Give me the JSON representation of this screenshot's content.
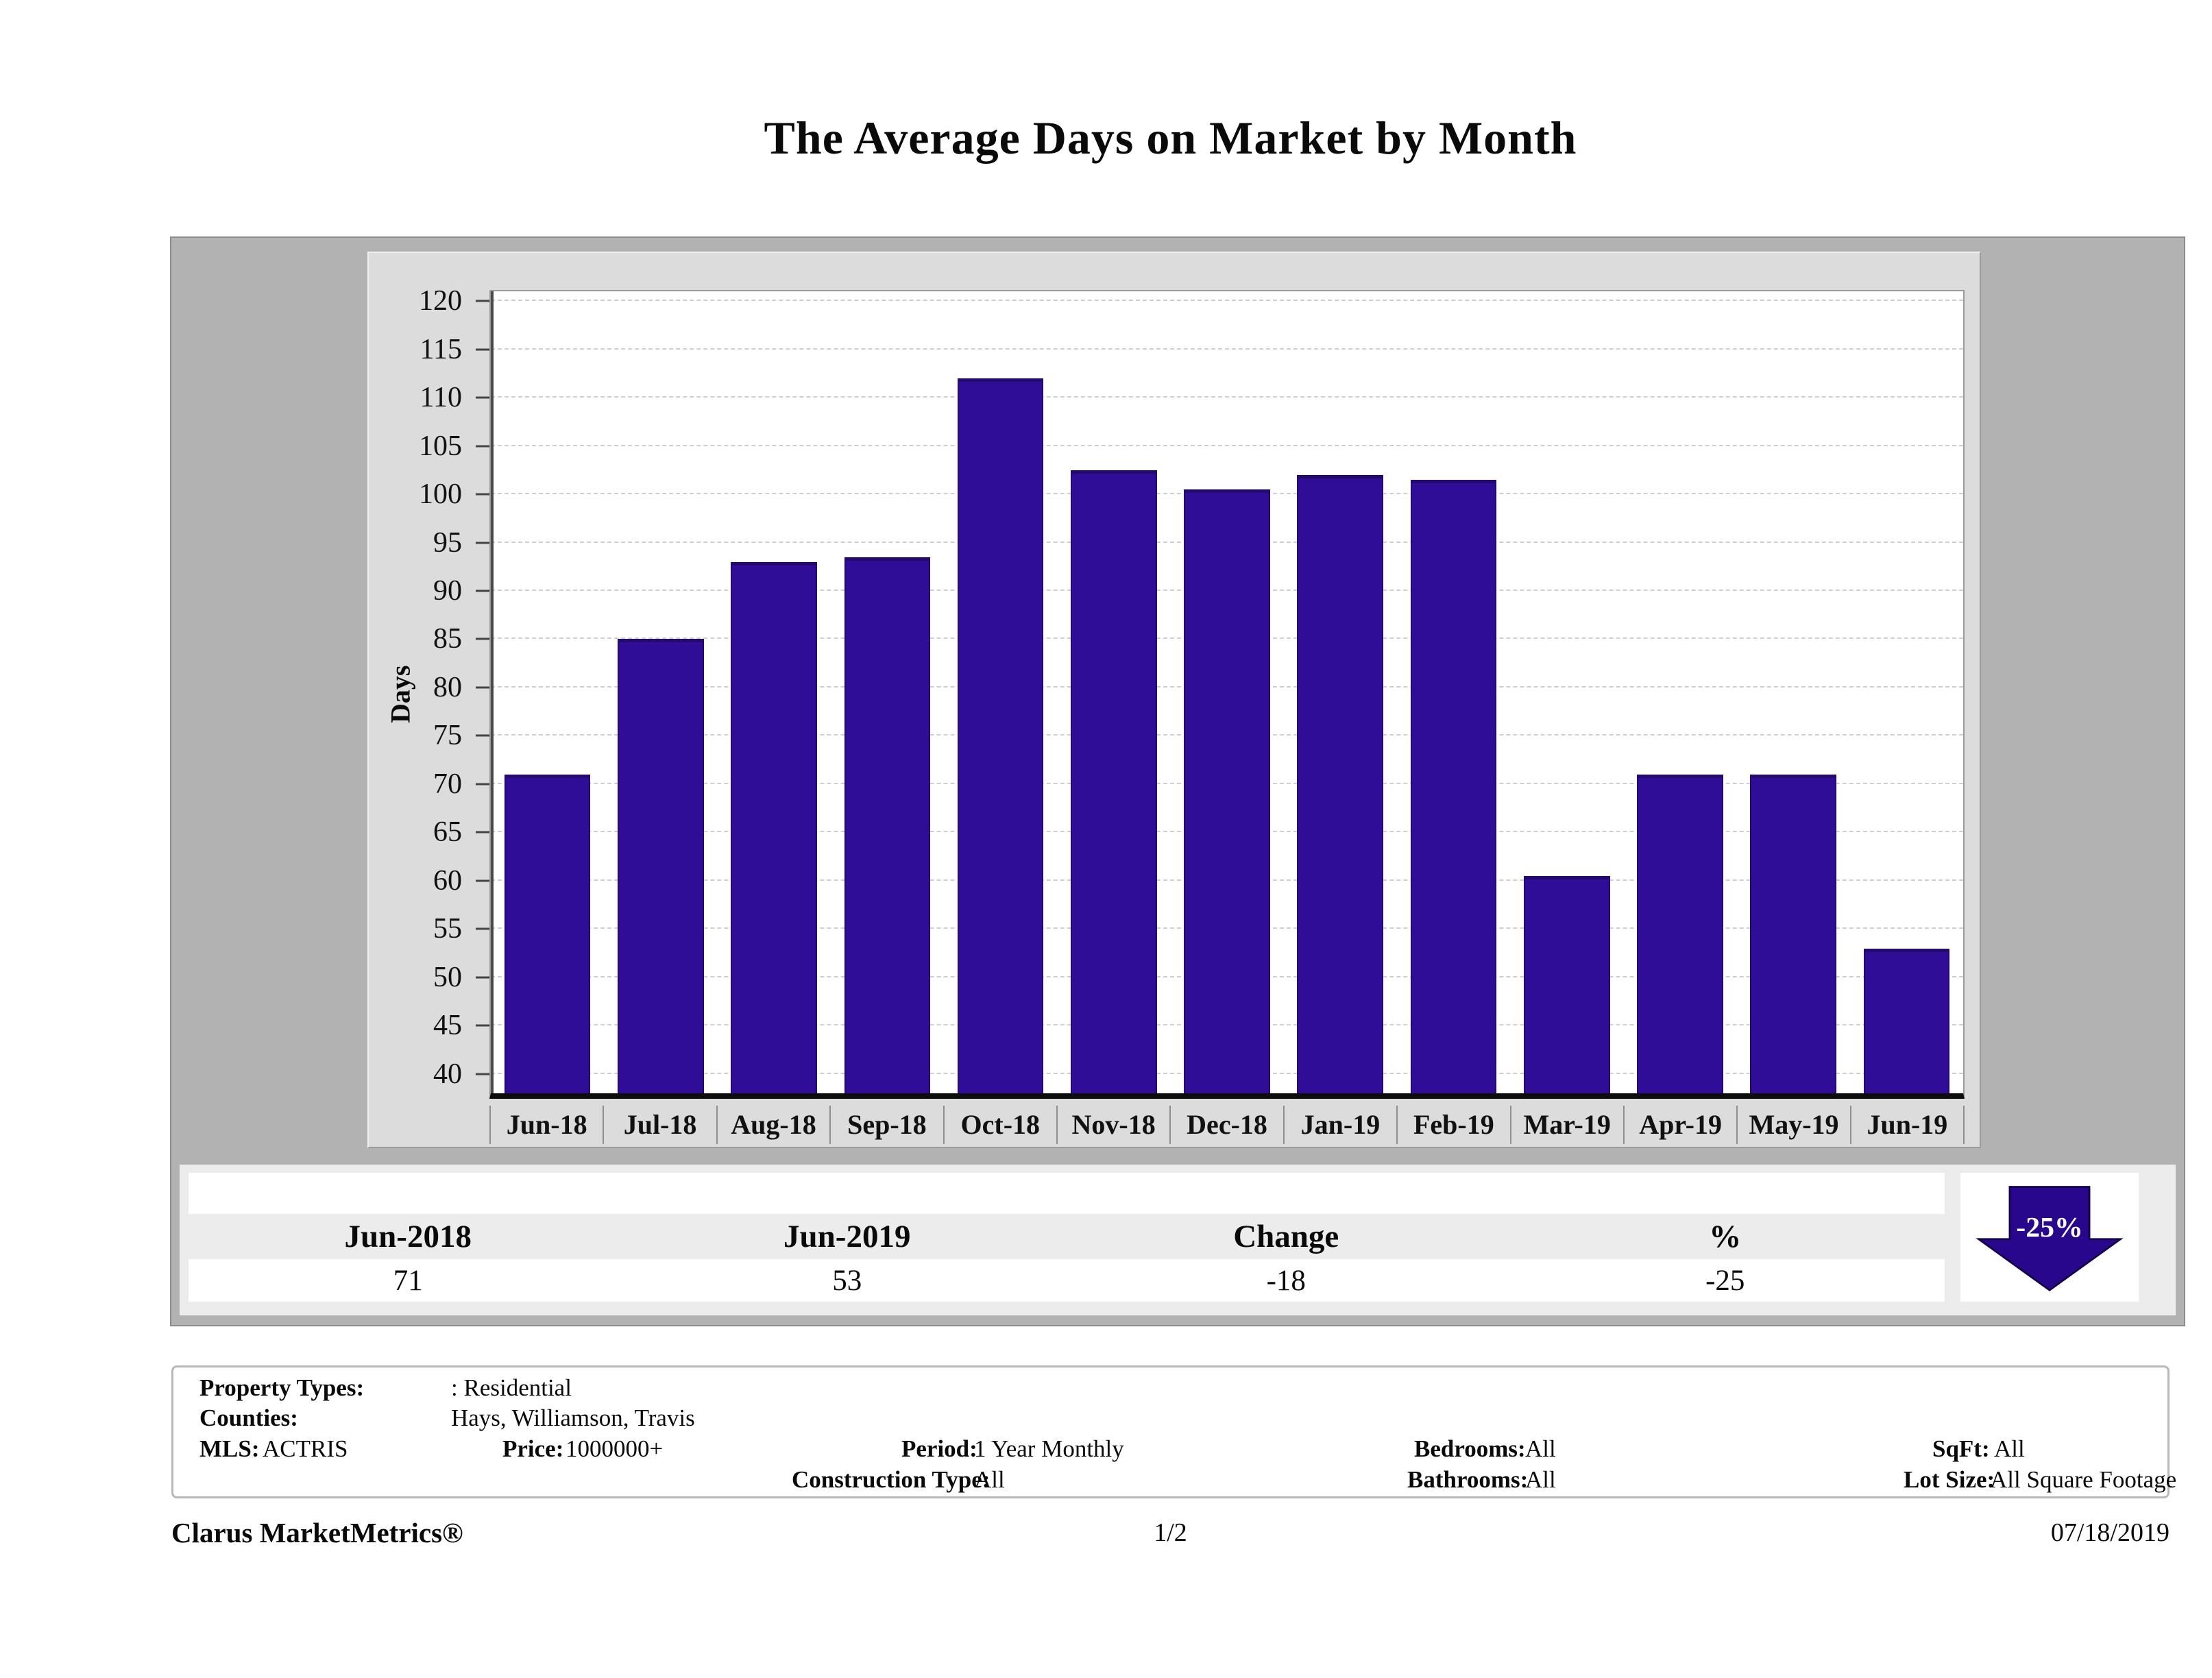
{
  "title": "The Average Days on Market by Month",
  "chart_data": {
    "type": "bar",
    "title": "The Average Days on Market by Month",
    "xlabel": "",
    "ylabel": "Days",
    "categories": [
      "Jun-18",
      "Jul-18",
      "Aug-18",
      "Sep-18",
      "Oct-18",
      "Nov-18",
      "Dec-18",
      "Jan-19",
      "Feb-19",
      "Mar-19",
      "Apr-19",
      "May-19",
      "Jun-19"
    ],
    "values": [
      71,
      85,
      93,
      93.5,
      112,
      102.5,
      100.5,
      102,
      101.5,
      60.5,
      71,
      71,
      53
    ],
    "y_ticks": [
      40,
      45,
      50,
      55,
      60,
      65,
      70,
      75,
      80,
      85,
      90,
      95,
      100,
      105,
      110,
      115,
      120
    ],
    "ylim": [
      38,
      121
    ],
    "grid": "horizontal-dashed",
    "legend": "none",
    "bar_color": "#2f0d96"
  },
  "summary_table": {
    "headers": [
      "Jun-2018",
      "Jun-2019",
      "Change",
      "%"
    ],
    "values": [
      "71",
      "53",
      "-18",
      "-25"
    ]
  },
  "trend_indicator": {
    "label": "-25%",
    "direction": "down",
    "color": "#29078d"
  },
  "filters": {
    "property_types_label": "Property Types:",
    "property_types": ": Residential",
    "counties_label": "Counties:",
    "counties": "Hays, Williamson, Travis",
    "mls_label": "MLS:",
    "mls": "ACTRIS",
    "price_label": "Price:",
    "price": "1000000+",
    "period_label": "Period:",
    "period": "1 Year Monthly",
    "construction_type_label": "Construction Type:",
    "construction_type": "All",
    "bedrooms_label": "Bedrooms:",
    "bedrooms": "All",
    "bathrooms_label": "Bathrooms:",
    "bathrooms": "All",
    "sqft_label": "SqFt:",
    "sqft": "All",
    "lot_size_label": "Lot Size:",
    "lot_size": "All Square Footage"
  },
  "footer": {
    "brand": "Clarus MarketMetrics®",
    "page": "1/2",
    "date": "07/18/2019"
  }
}
